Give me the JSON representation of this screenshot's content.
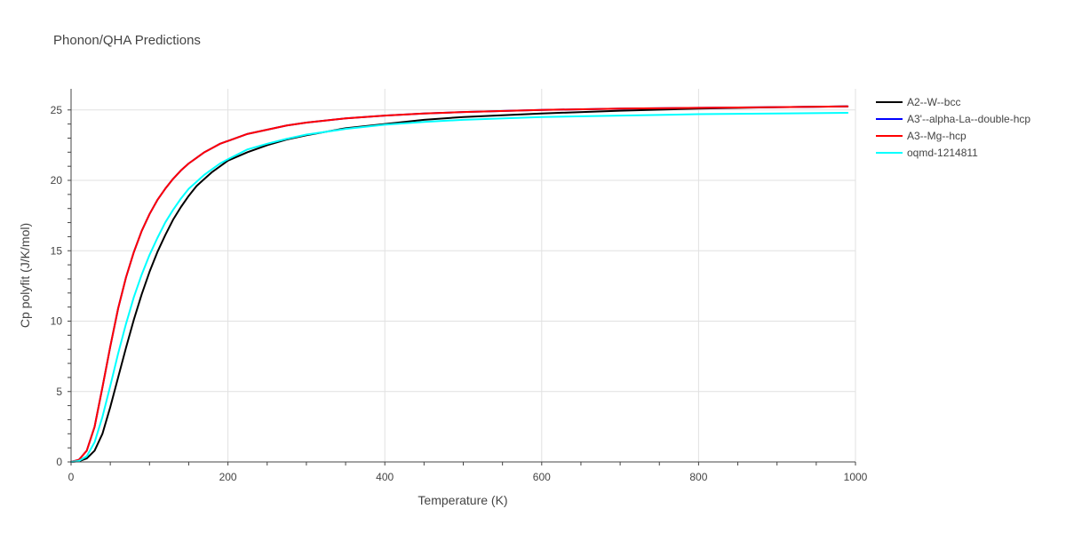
{
  "chart_data": {
    "type": "line",
    "title": "Phonon/QHA Predictions",
    "xlabel": "Temperature (K)",
    "ylabel": "Cp polyfit (J/K/mol)",
    "xlim": [
      0,
      1000
    ],
    "ylim": [
      0,
      26.5
    ],
    "xticks": [
      0,
      200,
      400,
      600,
      800,
      1000
    ],
    "yticks": [
      0,
      5,
      10,
      15,
      20,
      25
    ],
    "grid": true,
    "legend_position": "top-right",
    "series": [
      {
        "name": "A2--W--bcc",
        "color": "#000000",
        "x": [
          0,
          10,
          20,
          30,
          40,
          50,
          60,
          70,
          80,
          90,
          100,
          110,
          120,
          130,
          140,
          150,
          160,
          170,
          180,
          190,
          200,
          225,
          250,
          275,
          300,
          350,
          400,
          450,
          500,
          600,
          700,
          800,
          900,
          990
        ],
        "y": [
          0,
          0.05,
          0.25,
          0.8,
          2.0,
          3.9,
          6.0,
          8.1,
          10.1,
          11.9,
          13.5,
          14.9,
          16.1,
          17.2,
          18.1,
          18.9,
          19.6,
          20.1,
          20.6,
          21.0,
          21.4,
          22.0,
          22.5,
          22.9,
          23.2,
          23.7,
          24.0,
          24.3,
          24.5,
          24.75,
          24.95,
          25.1,
          25.2,
          25.25
        ]
      },
      {
        "name": "A3'--alpha-La--double-hcp",
        "color": "#0000ff",
        "x": [
          0,
          10,
          20,
          30,
          40,
          50,
          60,
          70,
          80,
          90,
          100,
          110,
          120,
          130,
          140,
          150,
          160,
          170,
          180,
          190,
          200,
          225,
          250,
          275,
          300,
          350,
          400,
          450,
          500,
          600,
          700,
          800,
          900,
          990
        ],
        "y": [
          0,
          0.15,
          0.8,
          2.5,
          5.3,
          8.2,
          10.9,
          13.1,
          14.9,
          16.4,
          17.6,
          18.6,
          19.4,
          20.1,
          20.7,
          21.2,
          21.6,
          22.0,
          22.3,
          22.6,
          22.8,
          23.3,
          23.6,
          23.9,
          24.1,
          24.4,
          24.6,
          24.75,
          24.85,
          25.0,
          25.1,
          25.15,
          25.2,
          25.25
        ]
      },
      {
        "name": "A3--Mg--hcp",
        "color": "#ff0000",
        "x": [
          0,
          10,
          20,
          30,
          40,
          50,
          60,
          70,
          80,
          90,
          100,
          110,
          120,
          130,
          140,
          150,
          160,
          170,
          180,
          190,
          200,
          225,
          250,
          275,
          300,
          350,
          400,
          450,
          500,
          600,
          700,
          800,
          900,
          990
        ],
        "y": [
          0,
          0.15,
          0.8,
          2.5,
          5.3,
          8.2,
          10.9,
          13.1,
          14.9,
          16.4,
          17.6,
          18.6,
          19.4,
          20.1,
          20.7,
          21.2,
          21.6,
          22.0,
          22.3,
          22.6,
          22.8,
          23.3,
          23.6,
          23.9,
          24.1,
          24.4,
          24.6,
          24.75,
          24.85,
          25.0,
          25.1,
          25.15,
          25.2,
          25.25
        ]
      },
      {
        "name": "oqmd-1214811",
        "color": "#00ffff",
        "x": [
          0,
          10,
          20,
          30,
          40,
          50,
          60,
          70,
          80,
          90,
          100,
          110,
          120,
          130,
          140,
          150,
          160,
          170,
          180,
          190,
          200,
          225,
          250,
          275,
          300,
          350,
          400,
          450,
          500,
          600,
          700,
          800,
          900,
          990
        ],
        "y": [
          0,
          0.07,
          0.4,
          1.4,
          3.2,
          5.4,
          7.7,
          9.8,
          11.7,
          13.3,
          14.7,
          15.9,
          17.0,
          17.9,
          18.7,
          19.4,
          19.9,
          20.4,
          20.8,
          21.2,
          21.5,
          22.2,
          22.6,
          22.95,
          23.25,
          23.65,
          23.95,
          24.15,
          24.3,
          24.5,
          24.6,
          24.7,
          24.75,
          24.8
        ]
      }
    ]
  }
}
